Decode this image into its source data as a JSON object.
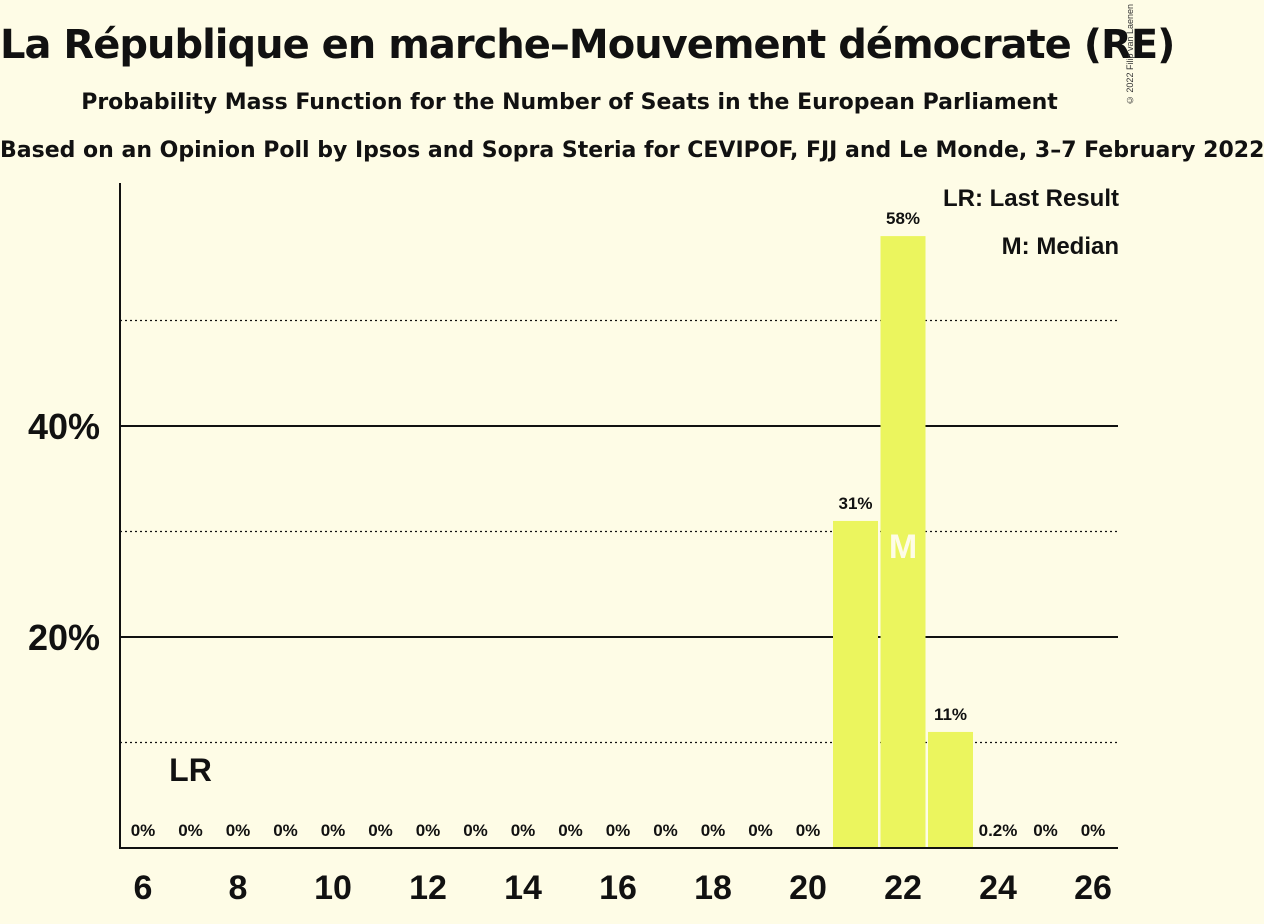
{
  "title": "La République en marche–Mouvement démocrate (RE)",
  "subtitle": "Probability Mass Function for the Number of Seats in the European Parliament",
  "source": "Based on an Opinion Poll by Ipsos and Sopra Steria for CEVIPOF, FJJ and Le Monde, 3–7 February 2022",
  "copyright": "© 2022 Filip van Laenen",
  "legend": {
    "last_result": "LR: Last Result",
    "median": "M: Median"
  },
  "colors": {
    "bar": "#ebf55e",
    "background": "#fefce6"
  },
  "chart_data": {
    "type": "bar",
    "x": [
      6,
      7,
      8,
      9,
      10,
      11,
      12,
      13,
      14,
      15,
      16,
      17,
      18,
      19,
      20,
      21,
      22,
      23,
      24,
      25,
      26
    ],
    "values": [
      0,
      0,
      0,
      0,
      0,
      0,
      0,
      0,
      0,
      0,
      0,
      0,
      0,
      0,
      0,
      31,
      58,
      11,
      0.2,
      0,
      0
    ],
    "labels": [
      "0%",
      "0%",
      "0%",
      "0%",
      "0%",
      "0%",
      "0%",
      "0%",
      "0%",
      "0%",
      "0%",
      "0%",
      "0%",
      "0%",
      "0%",
      "31%",
      "58%",
      "11%",
      "0.2%",
      "0%",
      "0%"
    ],
    "x_ticks": [
      6,
      8,
      10,
      12,
      14,
      16,
      18,
      20,
      22,
      24,
      26
    ],
    "y_ticks": [
      {
        "value": 20,
        "label": "20%"
      },
      {
        "value": 40,
        "label": "40%"
      }
    ],
    "y_gridlines_dotted": [
      10,
      30,
      50
    ],
    "ylim": [
      0,
      63
    ],
    "last_result": {
      "x": 7,
      "label": "LR"
    },
    "median": {
      "x": 22,
      "label": "M"
    }
  }
}
